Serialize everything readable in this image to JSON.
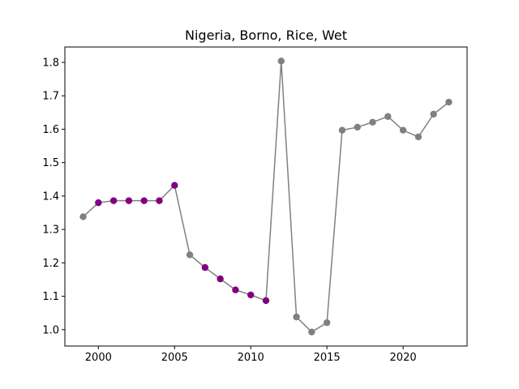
{
  "chart_data": {
    "type": "line",
    "title": "Nigeria, Borno, Rice, Wet",
    "xlabel": "",
    "ylabel": "",
    "xlim": [
      1997.8,
      2024.2
    ],
    "ylim": [
      0.951,
      1.846
    ],
    "x_ticks": [
      2000,
      2005,
      2010,
      2015,
      2020
    ],
    "y_ticks": [
      1.0,
      1.1,
      1.2,
      1.3,
      1.4,
      1.5,
      1.6,
      1.7,
      1.8
    ],
    "grid": false,
    "line_color": "#808080",
    "series": [
      {
        "x": [
          1999,
          2000,
          2001,
          2002,
          2003,
          2004,
          2005,
          2006,
          2007,
          2008,
          2009,
          2010,
          2011,
          2012,
          2013,
          2014,
          2015,
          2016,
          2017,
          2018,
          2019,
          2020,
          2021,
          2022,
          2023
        ],
        "y": [
          1.338,
          1.38,
          1.386,
          1.386,
          1.386,
          1.386,
          1.432,
          1.224,
          1.186,
          1.152,
          1.119,
          1.104,
          1.087,
          1.804,
          1.038,
          0.993,
          1.021,
          1.597,
          1.606,
          1.621,
          1.638,
          1.597,
          1.577,
          1.645,
          1.681
        ],
        "point_colors": [
          "#808080",
          "#800080",
          "#800080",
          "#800080",
          "#800080",
          "#800080",
          "#800080",
          "#808080",
          "#800080",
          "#800080",
          "#800080",
          "#800080",
          "#800080",
          "#808080",
          "#808080",
          "#808080",
          "#808080",
          "#808080",
          "#808080",
          "#808080",
          "#808080",
          "#808080",
          "#808080",
          "#808080",
          "#808080"
        ]
      }
    ]
  }
}
